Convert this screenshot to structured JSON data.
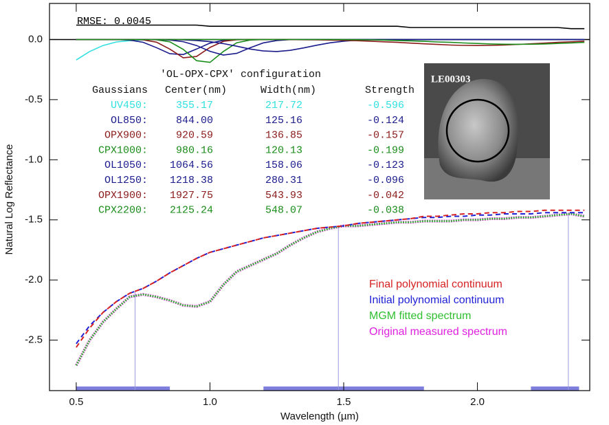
{
  "chart_data": {
    "type": "line",
    "xlabel": "Wavelength (µm)",
    "ylabel": "Natural Log Reflectance",
    "xlim": [
      0.4,
      2.42
    ],
    "ylim": [
      -2.92,
      0.3
    ],
    "xticks": [
      0.5,
      {
        "value": 1,
        "label": "1.0"
      },
      1.5,
      {
        "value": 2,
        "label": "2.0"
      }
    ],
    "yticks": [
      {
        "value": 0,
        "label": "0.0"
      },
      -0.5,
      {
        "value": -1,
        "label": "-1.0"
      },
      -1.5,
      {
        "value": -2,
        "label": "-2.0"
      },
      -2.5
    ],
    "legend": "lower right",
    "rmse_label": "RMSE: 0.0045",
    "inset_label": "LE00303",
    "tie_points": [
      0.72,
      1.48,
      2.34
    ],
    "fit_ranges": [
      [
        0.5,
        0.85
      ],
      [
        1.2,
        1.8
      ],
      [
        2.2,
        2.38
      ]
    ],
    "gaussian_table": {
      "title": "'OL-OPX-CPX' configuration",
      "header": [
        "Gaussians",
        "Center(nm)",
        "Width(nm)",
        "Strength"
      ],
      "rows": [
        {
          "color": "#30e0e0",
          "cells": [
            "UV450:",
            "355.17",
            "217.72",
            "-0.596"
          ]
        },
        {
          "color": "#1a1a8c",
          "cells": [
            "OL850:",
            "844.00",
            "125.16",
            "-0.124"
          ]
        },
        {
          "color": "#8b1a1a",
          "cells": [
            "OPX900:",
            "920.59",
            "136.85",
            "-0.157"
          ]
        },
        {
          "color": "#1a8c1a",
          "cells": [
            "CPX1000:",
            "980.16",
            "120.13",
            "-0.199"
          ]
        },
        {
          "color": "#1a1a8c",
          "cells": [
            "OL1050:",
            "1064.56",
            "158.06",
            "-0.123"
          ]
        },
        {
          "color": "#1a1a8c",
          "cells": [
            "OL1250:",
            "1218.38",
            "280.31",
            "-0.096"
          ]
        },
        {
          "color": "#8b1a1a",
          "cells": [
            "OPX1900:",
            "1927.75",
            "543.93",
            "-0.042"
          ]
        },
        {
          "color": "#1a8c1a",
          "cells": [
            "CPX2200:",
            "2125.24",
            "548.07",
            "-0.038"
          ]
        }
      ]
    },
    "x": [
      0.5,
      0.55,
      0.6,
      0.65,
      0.7,
      0.75,
      0.8,
      0.85,
      0.9,
      0.95,
      1.0,
      1.05,
      1.1,
      1.15,
      1.2,
      1.25,
      1.3,
      1.35,
      1.4,
      1.45,
      1.5,
      1.55,
      1.6,
      1.65,
      1.7,
      1.75,
      1.8,
      1.85,
      1.9,
      1.95,
      2.0,
      2.05,
      2.1,
      2.15,
      2.2,
      2.25,
      2.3,
      2.35,
      2.4
    ],
    "series": [
      {
        "color": "#30e0e0",
        "style": "solid",
        "values": [
          -0.17,
          -0.1,
          -0.05,
          -0.02,
          -0.01,
          -0.003,
          0,
          0,
          0,
          0,
          0,
          0,
          0,
          0,
          0,
          0,
          0,
          0,
          0,
          0,
          0,
          0,
          0,
          0,
          0,
          0,
          0,
          0,
          0,
          0,
          0,
          0,
          0,
          0,
          0,
          0,
          0,
          0,
          0
        ]
      },
      {
        "color": "#1a1a8c",
        "style": "solid",
        "values": [
          0,
          0,
          0,
          0,
          -0.005,
          -0.023,
          -0.068,
          -0.118,
          -0.125,
          -0.079,
          -0.03,
          -0.007,
          -0.001,
          0,
          0,
          0,
          0,
          0,
          0,
          0,
          0,
          0,
          0,
          0,
          0,
          0,
          0,
          0,
          0,
          0,
          0,
          0,
          0,
          0,
          0,
          0,
          0,
          0,
          0
        ]
      },
      {
        "color": "#8b1a1a",
        "style": "solid",
        "values": [
          0,
          0,
          0,
          0,
          0,
          -0.003,
          -0.022,
          -0.08,
          -0.152,
          -0.141,
          -0.066,
          -0.015,
          -0.002,
          0,
          0,
          0,
          0,
          0,
          0,
          0,
          0,
          0,
          0,
          0,
          0,
          0,
          0,
          0,
          0,
          0,
          0,
          0,
          0,
          0,
          0,
          0,
          0,
          0,
          0
        ]
      },
      {
        "color": "#1a8c1a",
        "style": "solid",
        "values": [
          0,
          0,
          0,
          0,
          0,
          0,
          -0.002,
          -0.019,
          -0.082,
          -0.176,
          -0.19,
          -0.1,
          -0.027,
          -0.004,
          0,
          0,
          0,
          0,
          0,
          0,
          0,
          0,
          0,
          0,
          0,
          0,
          0,
          0,
          0,
          0,
          0,
          0,
          0,
          0,
          0,
          0,
          0,
          0,
          0
        ]
      },
      {
        "color": "#1a1a8c",
        "style": "solid",
        "values": [
          0,
          0,
          0,
          0,
          0,
          0,
          -0.001,
          -0.004,
          -0.018,
          -0.05,
          -0.098,
          -0.129,
          -0.115,
          -0.069,
          -0.028,
          -0.008,
          -0.001,
          0,
          0,
          0,
          0,
          0,
          0,
          0,
          0,
          0,
          0,
          0,
          0,
          0,
          0,
          0,
          0,
          0,
          0,
          0,
          0,
          0,
          0
        ]
      },
      {
        "color": "#1a1a8c",
        "style": "solid",
        "values": [
          0,
          0,
          0,
          0,
          0,
          0,
          0,
          -0.001,
          -0.003,
          -0.008,
          -0.018,
          -0.034,
          -0.056,
          -0.079,
          -0.095,
          -0.1,
          -0.09,
          -0.07,
          -0.047,
          -0.027,
          -0.014,
          -0.006,
          -0.002,
          0,
          0,
          0,
          0,
          0,
          0,
          0,
          0,
          0,
          0,
          0,
          0,
          0,
          0,
          0,
          0
        ]
      },
      {
        "color": "#8b1a1a",
        "style": "solid",
        "values": [
          0,
          0,
          0,
          0,
          0,
          0,
          0,
          0,
          0,
          0,
          0,
          0,
          0,
          0,
          0,
          0,
          -0.001,
          -0.002,
          -0.003,
          -0.005,
          -0.007,
          -0.01,
          -0.014,
          -0.019,
          -0.024,
          -0.03,
          -0.036,
          -0.041,
          -0.046,
          -0.049,
          -0.05,
          -0.049,
          -0.046,
          -0.041,
          -0.036,
          -0.03,
          -0.024,
          -0.019,
          -0.014
        ]
      },
      {
        "color": "#1a8c1a",
        "style": "solid",
        "values": [
          0,
          0,
          0,
          0,
          0,
          0,
          0,
          0,
          0,
          0,
          0,
          0,
          0,
          0,
          0,
          0,
          0,
          0,
          0,
          0,
          -0.001,
          -0.002,
          -0.003,
          -0.005,
          -0.008,
          -0.011,
          -0.015,
          -0.02,
          -0.024,
          -0.029,
          -0.033,
          -0.037,
          -0.039,
          -0.04,
          -0.039,
          -0.037,
          -0.033,
          -0.029,
          -0.024
        ]
      },
      {
        "color": "#000000",
        "style": "solid",
        "values": [
          0.12,
          0.12,
          0.12,
          0.12,
          0.12,
          0.12,
          0.12,
          0.12,
          0.12,
          0.12,
          0.11,
          0.11,
          0.11,
          0.11,
          0.11,
          0.11,
          0.11,
          0.11,
          0.11,
          0.11,
          0.11,
          0.11,
          0.11,
          0.11,
          0.11,
          0.1,
          0.1,
          0.1,
          0.1,
          0.1,
          0.1,
          0.1,
          0.1,
          0.1,
          0.1,
          0.1,
          0.1,
          0.09,
          0.09
        ]
      },
      {
        "name": "Original measured spectrum",
        "color": "#e020e0",
        "style": "dotted",
        "values": [
          -2.71,
          -2.5,
          -2.35,
          -2.24,
          -2.14,
          -2.12,
          -2.14,
          -2.17,
          -2.21,
          -2.22,
          -2.18,
          -2.04,
          -1.93,
          -1.88,
          -1.83,
          -1.78,
          -1.71,
          -1.65,
          -1.6,
          -1.57,
          -1.55,
          -1.55,
          -1.54,
          -1.53,
          -1.52,
          -1.52,
          -1.51,
          -1.51,
          -1.51,
          -1.5,
          -1.5,
          -1.49,
          -1.49,
          -1.48,
          -1.48,
          -1.47,
          -1.46,
          -1.45,
          -1.47
        ]
      },
      {
        "name": "MGM fitted spectrum",
        "color": "#2fbf2f",
        "style": "dotted",
        "values": [
          -2.71,
          -2.5,
          -2.35,
          -2.24,
          -2.14,
          -2.12,
          -2.14,
          -2.17,
          -2.21,
          -2.22,
          -2.18,
          -2.04,
          -1.93,
          -1.88,
          -1.83,
          -1.78,
          -1.71,
          -1.65,
          -1.6,
          -1.57,
          -1.55,
          -1.55,
          -1.54,
          -1.53,
          -1.52,
          -1.52,
          -1.51,
          -1.51,
          -1.51,
          -1.5,
          -1.5,
          -1.49,
          -1.49,
          -1.48,
          -1.48,
          -1.47,
          -1.46,
          -1.45,
          -1.47
        ]
      },
      {
        "name": "Initial polynomial continuum",
        "color": "#1f1fd6",
        "style": "dashed",
        "values": [
          -2.53,
          -2.38,
          -2.27,
          -2.18,
          -2.11,
          -2.07,
          -2.01,
          -1.94,
          -1.88,
          -1.82,
          -1.77,
          -1.74,
          -1.71,
          -1.68,
          -1.65,
          -1.63,
          -1.61,
          -1.59,
          -1.57,
          -1.56,
          -1.55,
          -1.53,
          -1.52,
          -1.51,
          -1.5,
          -1.49,
          -1.48,
          -1.48,
          -1.47,
          -1.47,
          -1.46,
          -1.46,
          -1.45,
          -1.45,
          -1.45,
          -1.44,
          -1.44,
          -1.44,
          -1.44
        ]
      },
      {
        "name": "Final polynomial continuum",
        "color": "#d62222",
        "style": "dashed",
        "values": [
          -2.56,
          -2.4,
          -2.27,
          -2.18,
          -2.11,
          -2.07,
          -2.01,
          -1.94,
          -1.88,
          -1.82,
          -1.77,
          -1.74,
          -1.71,
          -1.68,
          -1.65,
          -1.63,
          -1.61,
          -1.59,
          -1.57,
          -1.56,
          -1.55,
          -1.53,
          -1.52,
          -1.51,
          -1.5,
          -1.49,
          -1.47,
          -1.47,
          -1.46,
          -1.45,
          -1.45,
          -1.44,
          -1.44,
          -1.43,
          -1.43,
          -1.42,
          -1.42,
          -1.42,
          -1.42
        ]
      }
    ]
  }
}
